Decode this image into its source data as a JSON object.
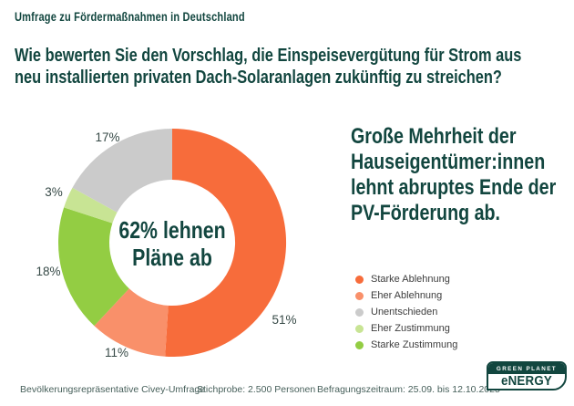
{
  "page": {
    "kicker": "Umfrage zu Fördermaßnahmen in Deutschland",
    "headline_line1": "Wie bewerten Sie den Vorschlag, die Einspeisevergütung für Strom aus",
    "headline_line2": "neu installierten privaten Dach-Solaranlagen zukünftig zu streichen?"
  },
  "right_panel": {
    "heading_line1": "Große Mehrheit der",
    "heading_line2": "Hauseigentümer:innen",
    "heading_line3": "lehnt abruptes Ende der",
    "heading_line4": "PV-Förderung ab."
  },
  "chart_data": {
    "type": "pie",
    "donut": true,
    "direction": "clockwise",
    "start_angle_deg": 0,
    "title": "Wie bewerten Sie den Vorschlag, die Einspeisevergütung für Strom aus neu installierten privaten Dach-Solaranlagen zukünftig zu streichen?",
    "segments": [
      {
        "label": "Starke Ablehnung",
        "value": 51,
        "pct_label": "51%",
        "color": "#F76C3B"
      },
      {
        "label": "Eher Ablehnung",
        "value": 11,
        "pct_label": "11%",
        "color": "#F9906A"
      },
      {
        "label": "Starke Zustimmung",
        "value": 18,
        "pct_label": "18%",
        "color": "#93CD43"
      },
      {
        "label": "Eher Zustimmung",
        "value": 3,
        "pct_label": "3%",
        "color": "#C8E494"
      },
      {
        "label": "Unentschieden",
        "value": 17,
        "pct_label": "17%",
        "color": "#CBCBCB"
      }
    ],
    "center_label": {
      "line1": "62% lehnen",
      "line2": "Pläne ab"
    },
    "legend": {
      "position": "right",
      "items": [
        {
          "label": "Starke Ablehnung",
          "color": "#F76C3B"
        },
        {
          "label": "Eher Ablehnung",
          "color": "#F9906A"
        },
        {
          "label": "Unentschieden",
          "color": "#CBCBCB"
        },
        {
          "label": "Eher Zustimmung",
          "color": "#C8E494"
        },
        {
          "label": "Starke Zustimmung",
          "color": "#93CD43"
        }
      ]
    },
    "colors": {
      "brand_dark_teal": "#12463F",
      "background": "#FFFFFF"
    }
  },
  "footer": {
    "source": "Bevölkerungsrepräsentative Civey-Umfrage",
    "sample": "Stichprobe: 2.500 Personen",
    "period": "Befragungszeitraum: 25.09. bis 12.10.2025"
  },
  "logo": {
    "top": "GREEN PLANET",
    "bottom": "eNERGY"
  }
}
